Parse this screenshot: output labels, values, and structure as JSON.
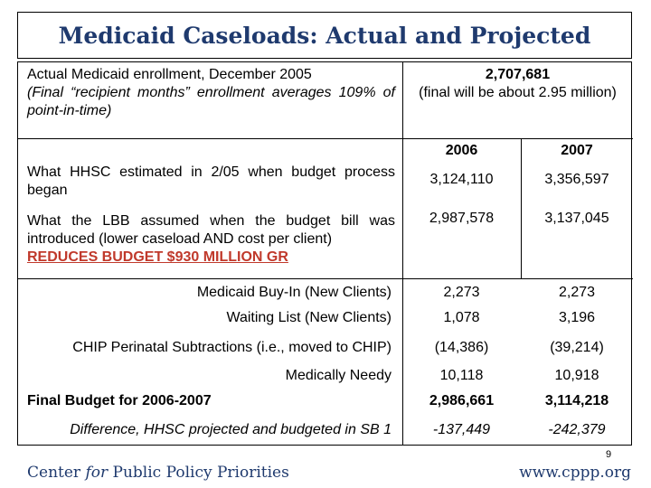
{
  "title": "Medicaid Caseloads: Actual and Projected",
  "actual": {
    "label_line1": "Actual Medicaid enrollment, December 2005",
    "label_line2": "(Final “recipient months” enrollment averages 109% of point-in-time)",
    "value_line1": "2,707,681",
    "value_line2": "(final will be about 2.95 million)"
  },
  "columns": [
    "2006",
    "2007"
  ],
  "rows": {
    "hhsc": {
      "label": "What HHSC estimated in 2/05 when budget process began",
      "v2006": "3,124,110",
      "v2007": "3,356,597"
    },
    "lbb": {
      "label": "What the LBB assumed when the budget bill was introduced (lower caseload AND cost per client)",
      "note": "REDUCES BUDGET $930 MILLION GR",
      "v2006": "2,987,578",
      "v2007": "3,137,045"
    },
    "buyin": {
      "label": "Medicaid Buy-In (New Clients)",
      "v2006": "2,273",
      "v2007": "2,273"
    },
    "waiting": {
      "label": "Waiting List (New Clients)",
      "v2006": "1,078",
      "v2007": "3,196"
    },
    "chip": {
      "label": "CHIP Perinatal Subtractions (i.e., moved to CHIP)",
      "v2006": "(14,386)",
      "v2007": "(39,214)"
    },
    "needy": {
      "label": "Medically Needy",
      "v2006": "10,118",
      "v2007": "10,918"
    },
    "final": {
      "label": "Final Budget for 2006-2007",
      "v2006": "2,986,661",
      "v2007": "3,114,218"
    },
    "diff": {
      "label": "Difference, HHSC projected and budgeted in SB 1",
      "v2006": "-137,449",
      "v2007": "-242,379"
    }
  },
  "page_number": "9",
  "footer": {
    "org_before": "Center ",
    "org_italic": "for",
    "org_after": " Public Policy Priorities",
    "url": "www.cppp.org"
  }
}
